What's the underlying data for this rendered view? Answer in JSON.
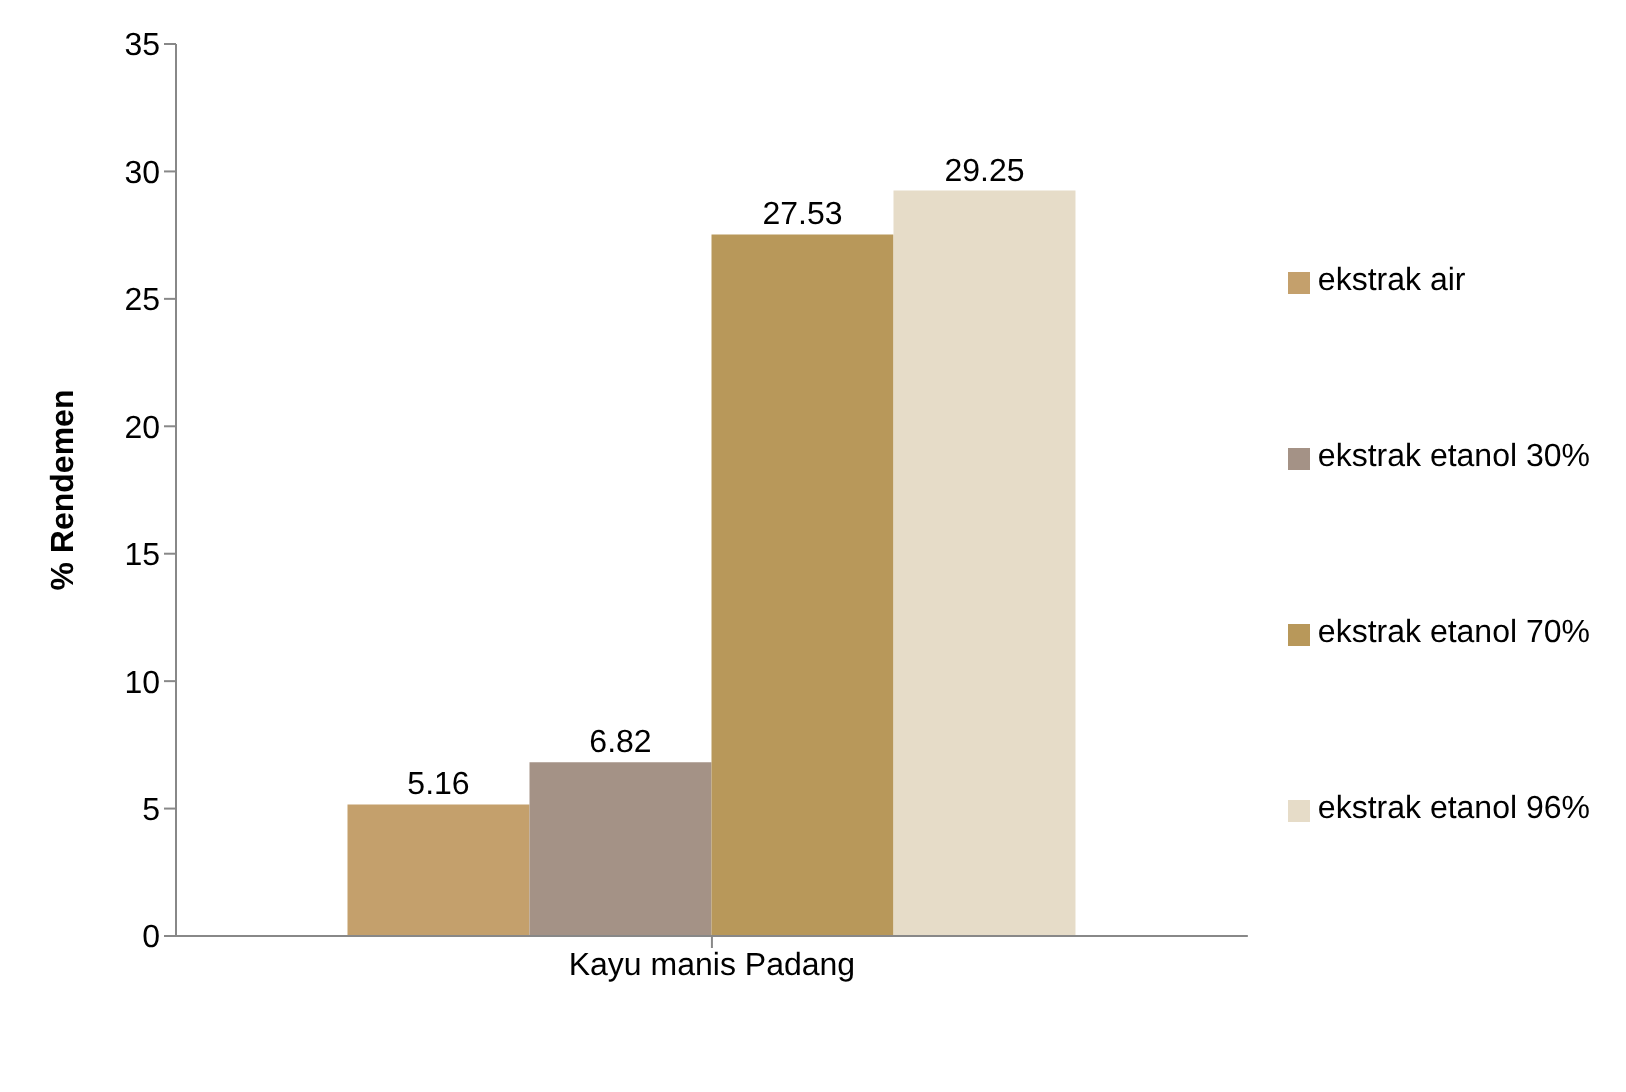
{
  "chart_data": {
    "type": "bar",
    "ylabel": "% Rendemen",
    "categories": [
      "Kayu manis Padang"
    ],
    "series": [
      {
        "name": "ekstrak air",
        "color": "#c4a06c",
        "values": [
          5.16
        ]
      },
      {
        "name": "ekstrak etanol 30%",
        "color": "#a49286",
        "values": [
          6.82
        ]
      },
      {
        "name": "ekstrak etanol 70%",
        "color": "#b8985a",
        "values": [
          27.53
        ]
      },
      {
        "name": "ekstrak etanol 96%",
        "color": "#e6dcc8",
        "values": [
          29.25
        ]
      }
    ],
    "ylim": [
      0,
      35
    ],
    "yticks": [
      0,
      5,
      10,
      15,
      20,
      25,
      30,
      35
    ],
    "data_labels": true,
    "legend": "right",
    "grid": false
  }
}
